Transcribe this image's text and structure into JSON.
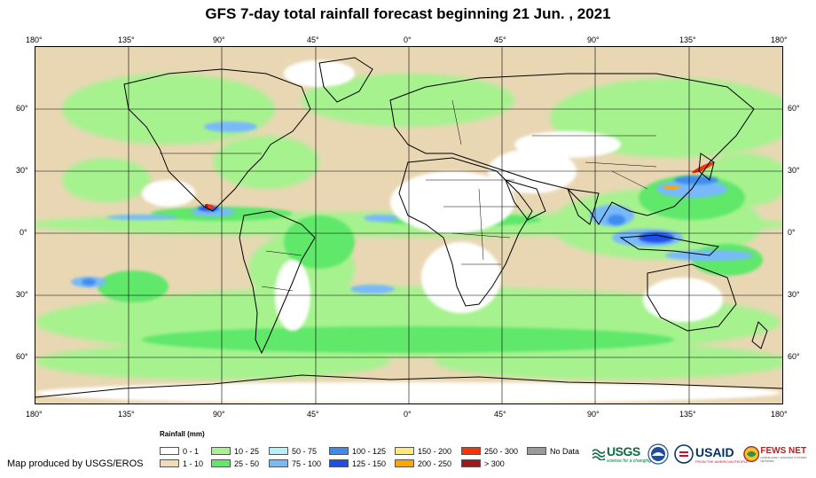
{
  "title": "GFS 7-day total rainfall forecast beginning 21 Jun. , 2021",
  "lon_labels": [
    "180°",
    "135°",
    "90°",
    "45°",
    "0°",
    "45°",
    "90°",
    "135°",
    "180°"
  ],
  "lat_labels": [
    "60°",
    "30°",
    "0°",
    "30°",
    "60°"
  ],
  "legend": {
    "title": "Rainfall (mm)",
    "items": [
      {
        "label": "0 - 1",
        "color": "#ffffff"
      },
      {
        "label": "1 - 10",
        "color": "#f0dcb4"
      },
      {
        "label": "10 - 25",
        "color": "#a6f28f"
      },
      {
        "label": "25 - 50",
        "color": "#5fe86a"
      },
      {
        "label": "50 - 75",
        "color": "#b4f0fa"
      },
      {
        "label": "75 - 100",
        "color": "#78b9fb"
      },
      {
        "label": "100 - 125",
        "color": "#3c8cf0"
      },
      {
        "label": "125 - 150",
        "color": "#1e50e6"
      },
      {
        "label": "150 - 200",
        "color": "#ffe978"
      },
      {
        "label": "200 - 250",
        "color": "#ffa500"
      },
      {
        "label": "250 - 300",
        "color": "#ff3200"
      },
      {
        "label": "> 300",
        "color": "#a01a1a"
      },
      {
        "label": "No Data",
        "color": "#9a9a9a"
      }
    ]
  },
  "credit": "Map produced by USGS/EROS",
  "logos": {
    "usgs": "USGS",
    "usgs_tagline": "science for a changing world",
    "usaid": "USAID",
    "usaid_tagline": "FROM THE AMERICAN PEOPLE",
    "fews": "FEWS NET",
    "fews_tagline": "FAMINE EARLY WARNING SYSTEMS NETWORK"
  }
}
